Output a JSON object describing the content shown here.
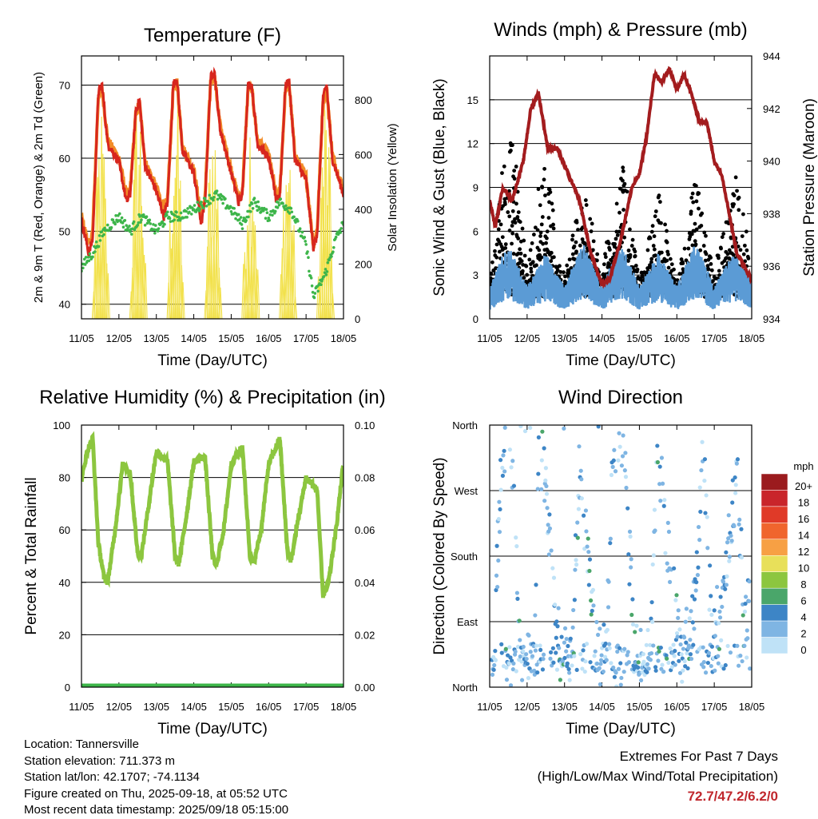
{
  "chart_data": [
    {
      "type": "line",
      "title": "Temperature (F)",
      "xlabel": "Time (Day/UTC)",
      "ylabel_left": "2m & 9m T (Red, Orange) & 2m Td (Green)",
      "ylabel_right": "Solar Insolation (Yellow)",
      "x_ticks": [
        "11/05",
        "12/05",
        "13/05",
        "14/05",
        "15/05",
        "16/05",
        "17/05",
        "18/05"
      ],
      "ylim": [
        38,
        74
      ],
      "y_ticks": [
        40,
        50,
        60,
        70
      ],
      "ylim_right": [
        0,
        960
      ],
      "y_ticks_right": [
        0,
        200,
        400,
        600,
        800
      ],
      "grid": "horizontal",
      "series": [
        {
          "name": "2m T",
          "color": "#d7261e",
          "x": [
            0,
            0.2,
            0.3,
            0.45,
            0.55,
            0.7,
            1.0,
            1.2,
            1.3,
            1.45,
            1.55,
            1.7,
            2.0,
            2.2,
            2.3,
            2.45,
            2.55,
            2.7,
            3.0,
            3.2,
            3.3,
            3.45,
            3.55,
            3.7,
            4.0,
            4.2,
            4.3,
            4.45,
            4.55,
            4.7,
            5.0,
            5.2,
            5.3,
            5.45,
            5.55,
            5.7,
            6.0,
            6.2,
            6.3,
            6.45,
            6.55,
            6.7,
            7.0
          ],
          "y": [
            51.5,
            47,
            49,
            69,
            70,
            62,
            59.5,
            54,
            55,
            66.5,
            68,
            59,
            55.5,
            52,
            54,
            70,
            71,
            61,
            58,
            51,
            54,
            71,
            72,
            64,
            58,
            54,
            55,
            70,
            70,
            62,
            60,
            54.5,
            55,
            70,
            70.5,
            60,
            57,
            47.5,
            50,
            68,
            70,
            60,
            55
          ]
        },
        {
          "name": "9m T",
          "color": "#f28c28",
          "x": [
            0,
            0.2,
            0.3,
            0.45,
            0.55,
            0.7,
            1.0,
            1.2,
            1.3,
            1.45,
            1.55,
            1.7,
            2.0,
            2.2,
            2.3,
            2.45,
            2.55,
            2.7,
            3.0,
            3.2,
            3.3,
            3.45,
            3.55,
            3.7,
            4.0,
            4.2,
            4.3,
            4.45,
            4.55,
            4.7,
            5.0,
            5.2,
            5.3,
            5.45,
            5.55,
            5.7,
            6.0,
            6.2,
            6.3,
            6.45,
            6.55,
            6.7,
            7.0
          ],
          "y": [
            52,
            48,
            50,
            68.5,
            69.5,
            62.5,
            60,
            55,
            55.5,
            66,
            67.5,
            59.5,
            56,
            53,
            54.5,
            69.5,
            70.5,
            61.5,
            58.5,
            52,
            54.5,
            70.5,
            71.5,
            64.5,
            58.5,
            54.5,
            55.5,
            69.5,
            69.5,
            62.5,
            60.5,
            55,
            55.5,
            69.5,
            70,
            60.5,
            57.5,
            48,
            50.5,
            67.5,
            69.5,
            60.5,
            55.5
          ]
        },
        {
          "name": "2m Td",
          "color": "#3db54a",
          "x": [
            0,
            0.3,
            0.6,
            1.0,
            1.3,
            1.6,
            2.0,
            2.3,
            2.6,
            3.0,
            3.3,
            3.6,
            4.0,
            4.3,
            4.6,
            5.0,
            5.3,
            5.6,
            6.0,
            6.2,
            6.5,
            6.8,
            7.0
          ],
          "y": [
            45,
            47,
            50,
            52,
            50,
            52,
            50,
            52,
            52,
            53,
            54,
            55,
            53,
            51,
            54,
            52,
            54,
            53,
            48,
            41,
            44,
            49,
            51
          ]
        },
        {
          "name": "Solar Insolation",
          "color": "#f2e14a",
          "axis": "right",
          "x": [
            0.25,
            0.5,
            0.75,
            1.25,
            1.5,
            1.75,
            2.25,
            2.5,
            2.75,
            3.25,
            3.5,
            3.75,
            4.25,
            4.5,
            4.75,
            5.25,
            5.5,
            5.75,
            6.25,
            6.5,
            6.75
          ],
          "y": [
            0,
            810,
            0,
            0,
            900,
            0,
            0,
            920,
            0,
            0,
            840,
            0,
            0,
            870,
            0,
            0,
            760,
            0,
            0,
            890,
            0
          ]
        }
      ]
    },
    {
      "type": "scatter",
      "title": "Winds (mph) & Pressure (mb)",
      "xlabel": "Time (Day/UTC)",
      "ylabel_left": "Sonic Wind & Gust (Blue, Black)",
      "ylabel_right": "Station Pressure (Maroon)",
      "x_ticks": [
        "11/05",
        "12/05",
        "13/05",
        "14/05",
        "15/05",
        "16/05",
        "17/05",
        "18/05"
      ],
      "ylim": [
        0,
        18
      ],
      "y_ticks": [
        0,
        3,
        6,
        9,
        12,
        15
      ],
      "ylim_right": [
        934,
        944
      ],
      "y_ticks_right": [
        934,
        936,
        938,
        940,
        942,
        944
      ],
      "grid": "horizontal",
      "series": [
        {
          "name": "Station Pressure",
          "color": "#a31c1e",
          "axis": "right",
          "style": "line",
          "x": [
            0,
            0.15,
            0.35,
            0.6,
            0.9,
            1.1,
            1.3,
            1.55,
            1.8,
            2.1,
            2.4,
            2.7,
            3.0,
            3.2,
            3.5,
            3.8,
            4.0,
            4.2,
            4.4,
            4.6,
            4.8,
            5.0,
            5.2,
            5.4,
            5.6,
            5.8,
            6.0,
            6.2,
            6.4,
            6.6,
            6.8,
            7.0
          ],
          "y": [
            938.5,
            937.5,
            939,
            938.5,
            940,
            942,
            942.6,
            940.5,
            940.5,
            939.5,
            938.5,
            936.5,
            935.3,
            935.5,
            937,
            939,
            939.5,
            941,
            943.3,
            943,
            943.5,
            942.7,
            943.3,
            942.5,
            941.5,
            941.5,
            940,
            939.5,
            938,
            936.5,
            936,
            935.5
          ]
        },
        {
          "name": "Sonic Wind",
          "color": "#5b9bd5",
          "style": "band",
          "x": [
            0,
            0.5,
            1.0,
            1.5,
            2.0,
            2.5,
            3.0,
            3.5,
            4.0,
            4.5,
            5.0,
            5.5,
            6.0,
            6.5,
            7.0
          ],
          "y": [
            1.5,
            3.5,
            1.5,
            3,
            1.5,
            3.5,
            1.5,
            3.5,
            1.5,
            3.0,
            1.5,
            3.5,
            1.5,
            3,
            1.8
          ]
        },
        {
          "name": "Gust",
          "color": "#000000",
          "style": "dots",
          "x": [
            0,
            0.4,
            0.6,
            1.0,
            1.4,
            1.6,
            2.0,
            2.5,
            3.0,
            3.5,
            4.0,
            4.5,
            5.0,
            5.5,
            6.0,
            6.5,
            7.0
          ],
          "y": [
            2.5,
            12,
            14,
            3,
            11,
            9,
            3,
            10,
            3,
            12,
            2.5,
            9,
            2.5,
            10,
            3,
            11,
            4
          ]
        }
      ]
    },
    {
      "type": "line",
      "title": "Relative Humidity (%) & Precipitation (in)",
      "xlabel": "Time (Day/UTC)",
      "ylabel_left": "Percent & Total Rainfall",
      "x_ticks": [
        "11/05",
        "12/05",
        "13/05",
        "14/05",
        "15/05",
        "16/05",
        "17/05",
        "18/05"
      ],
      "ylim": [
        0,
        100
      ],
      "y_ticks": [
        0,
        20,
        40,
        60,
        80,
        100
      ],
      "ylim_right": [
        0,
        0.1
      ],
      "y_ticks_right": [
        "0.00",
        "0.02",
        "0.04",
        "0.06",
        "0.08",
        "0.10"
      ],
      "grid": "horizontal",
      "series": [
        {
          "name": "Relative Humidity",
          "color": "#8cc63f",
          "x": [
            0,
            0.15,
            0.3,
            0.45,
            0.6,
            0.7,
            0.9,
            1.1,
            1.3,
            1.5,
            1.6,
            1.8,
            2.0,
            2.3,
            2.5,
            2.6,
            2.8,
            3.0,
            3.3,
            3.5,
            3.6,
            3.8,
            4.0,
            4.3,
            4.5,
            4.6,
            4.8,
            5.0,
            5.3,
            5.5,
            5.6,
            5.8,
            6.0,
            6.3,
            6.45,
            6.6,
            6.8,
            7.0
          ],
          "y": [
            79,
            90,
            95,
            55,
            42,
            40,
            60,
            85,
            82,
            51,
            50,
            70,
            90,
            86,
            50,
            47,
            65,
            86,
            88,
            50,
            46,
            60,
            85,
            92,
            50,
            47,
            60,
            85,
            95,
            52,
            48,
            65,
            80,
            75,
            35,
            40,
            60,
            86
          ]
        },
        {
          "name": "Total Precipitation",
          "color": "#3db54a",
          "axis": "right",
          "x": [
            0,
            7.0
          ],
          "y": [
            0,
            0
          ]
        }
      ]
    },
    {
      "type": "scatter",
      "title": "Wind Direction",
      "xlabel": "Time (Day/UTC)",
      "ylabel_left": "Direction (Colored By Speed)",
      "x_ticks": [
        "11/05",
        "12/05",
        "13/05",
        "14/05",
        "15/05",
        "16/05",
        "17/05",
        "18/05"
      ],
      "y_ticks": [
        "North",
        "East",
        "South",
        "West",
        "North"
      ],
      "ylim": [
        0,
        360
      ],
      "grid": "horizontal",
      "colorbar": {
        "title": "mph",
        "labels": [
          "20+",
          "18",
          "16",
          "14",
          "12",
          "10",
          "8",
          "6",
          "4",
          "2",
          "0"
        ],
        "colors": [
          "#9b1b1e",
          "#c9252b",
          "#e03a28",
          "#f0652d",
          "#f7a044",
          "#e8e05a",
          "#8cc63f",
          "#4aa66a",
          "#3d85c6",
          "#7fb5e3",
          "#bfe2f7"
        ]
      },
      "series": [
        {
          "name": "Wind Direction",
          "style": "dots",
          "x": [
            0.1,
            0.3,
            0.45,
            0.5,
            0.6,
            0.8,
            1.0,
            1.2,
            1.3,
            1.5,
            1.6,
            1.9,
            2.2,
            2.4,
            2.6,
            2.9,
            3.1,
            3.3,
            3.5,
            3.6,
            3.9,
            4.1,
            4.3,
            4.5,
            4.7,
            4.9,
            5.1,
            5.3,
            5.5,
            5.7,
            5.9,
            6.2,
            6.4,
            6.6,
            6.8
          ],
          "y": [
            45,
            300,
            340,
            355,
            320,
            40,
            30,
            50,
            340,
            280,
            200,
            30,
            60,
            300,
            200,
            40,
            50,
            330,
            350,
            300,
            40,
            50,
            60,
            340,
            200,
            150,
            40,
            70,
            120,
            350,
            100,
            90,
            200,
            300,
            110
          ]
        }
      ]
    }
  ],
  "info": {
    "location": "Location: Tannersville",
    "elevation": "Station elevation: 711.373 m",
    "latlon": "Station lat/lon: 42.1707; -74.1134",
    "created": "Figure created on Thu, 2025-09-18, at 05:52 UTC",
    "recent": "Most recent data timestamp: 2025/09/18 05:15:00"
  },
  "extremes": {
    "title": "Extremes For Past 7 Days",
    "subtitle": "(High/Low/Max Wind/Total Precipitation)",
    "values": "72.7/47.2/6.2/0"
  }
}
